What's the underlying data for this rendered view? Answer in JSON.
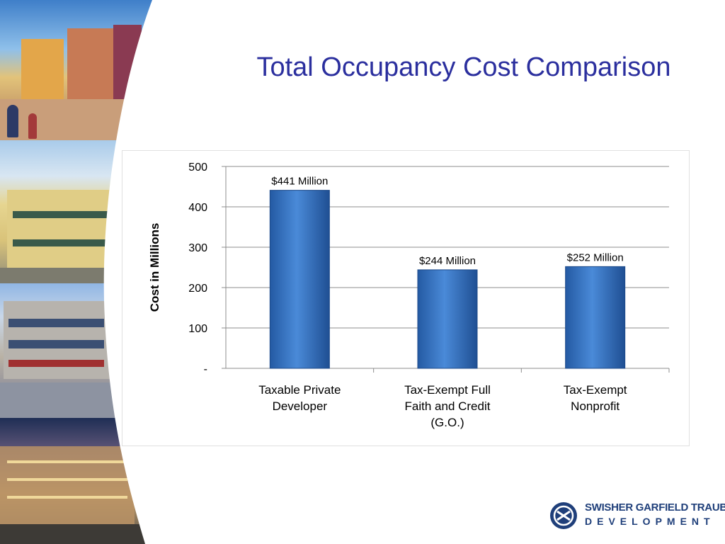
{
  "slide": {
    "title": "Total Occupancy Cost Comparison"
  },
  "logo": {
    "name_line1": "SWISHER GARFIELD TRAUB",
    "name_line2": "DEVELOPMENT"
  },
  "chart_data": {
    "type": "bar",
    "title": "",
    "xlabel": "",
    "ylabel": "Cost in Millions",
    "ylim": [
      0,
      500
    ],
    "yticks": [
      0,
      100,
      200,
      300,
      400,
      500
    ],
    "ytick_labels": [
      "-",
      "100",
      "200",
      "300",
      "400",
      "500"
    ],
    "categories": [
      [
        "Taxable Private",
        "Developer"
      ],
      [
        "Tax-Exempt Full",
        "Faith and Credit",
        "(G.O.)"
      ],
      [
        "Tax-Exempt",
        "Nonprofit"
      ]
    ],
    "values": [
      441,
      244,
      252
    ],
    "data_labels": [
      "$441 Million",
      "$244 Million",
      "$252 Million"
    ],
    "grid": true,
    "legend": "none",
    "bar_color": "#3f7fd0"
  }
}
